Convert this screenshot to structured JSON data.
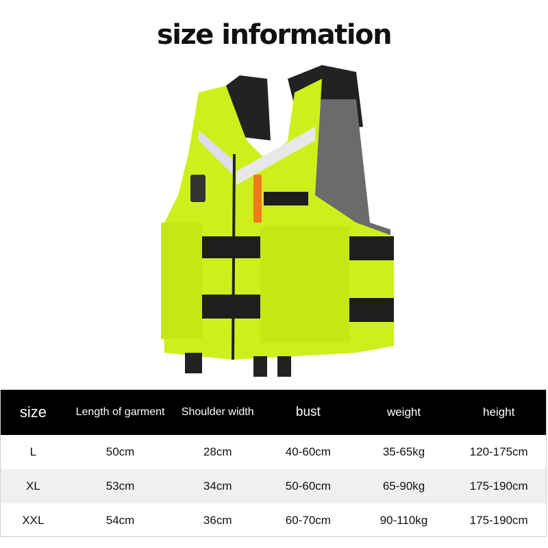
{
  "title": "size information",
  "colors": {
    "vest": "#cdf01c",
    "header_bg": "#000000",
    "alt_row": "#f0f0f0"
  },
  "table": {
    "headers": [
      "size",
      "Length of garment",
      "Shoulder width",
      "bust",
      "weight",
      "height"
    ],
    "rows": [
      [
        "L",
        "50cm",
        "28cm",
        "40-60cm",
        "35-65kg",
        "120-175cm"
      ],
      [
        "XL",
        "53cm",
        "34cm",
        "50-60cm",
        "65-90kg",
        "175-190cm"
      ],
      [
        "XXL",
        "54cm",
        "36cm",
        "60-70cm",
        "90-110kg",
        "175-190cm"
      ]
    ]
  }
}
